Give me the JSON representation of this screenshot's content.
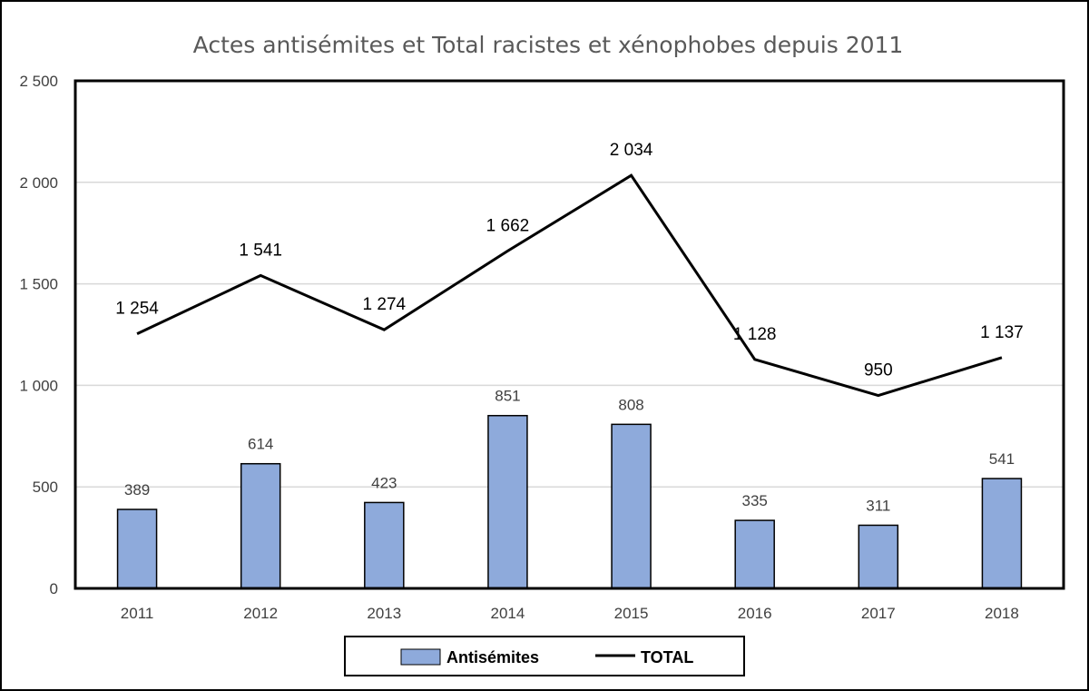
{
  "chart_data": {
    "type": "bar",
    "title": "Actes antisémites et Total racistes et xénophobes depuis 2011",
    "categories": [
      "2011",
      "2012",
      "2013",
      "2014",
      "2015",
      "2016",
      "2017",
      "2018"
    ],
    "series": [
      {
        "name": "Antisémites",
        "kind": "bar",
        "values": [
          389,
          614,
          423,
          851,
          808,
          335,
          311,
          541
        ],
        "labels": [
          "389",
          "614",
          "423",
          "851",
          "808",
          "335",
          "311",
          "541"
        ],
        "color": "#8eaadb"
      },
      {
        "name": "TOTAL",
        "kind": "line",
        "values": [
          1254,
          1541,
          1274,
          1662,
          2034,
          1128,
          950,
          1137
        ],
        "labels": [
          "1 254",
          "1 541",
          "1 274",
          "1 662",
          "2 034",
          "1 128",
          "950",
          "1 137"
        ],
        "color": "#000000"
      }
    ],
    "ylim": [
      0,
      2500
    ],
    "yticks": [
      0,
      500,
      1000,
      1500,
      2000,
      2500
    ],
    "ytick_labels": [
      "0",
      "500",
      "1 000",
      "1 500",
      "2 000",
      "2 500"
    ],
    "xlabel": "",
    "ylabel": "",
    "grid": true,
    "legend": {
      "position": "bottom",
      "entries": [
        "Antisémites",
        "TOTAL"
      ]
    }
  }
}
